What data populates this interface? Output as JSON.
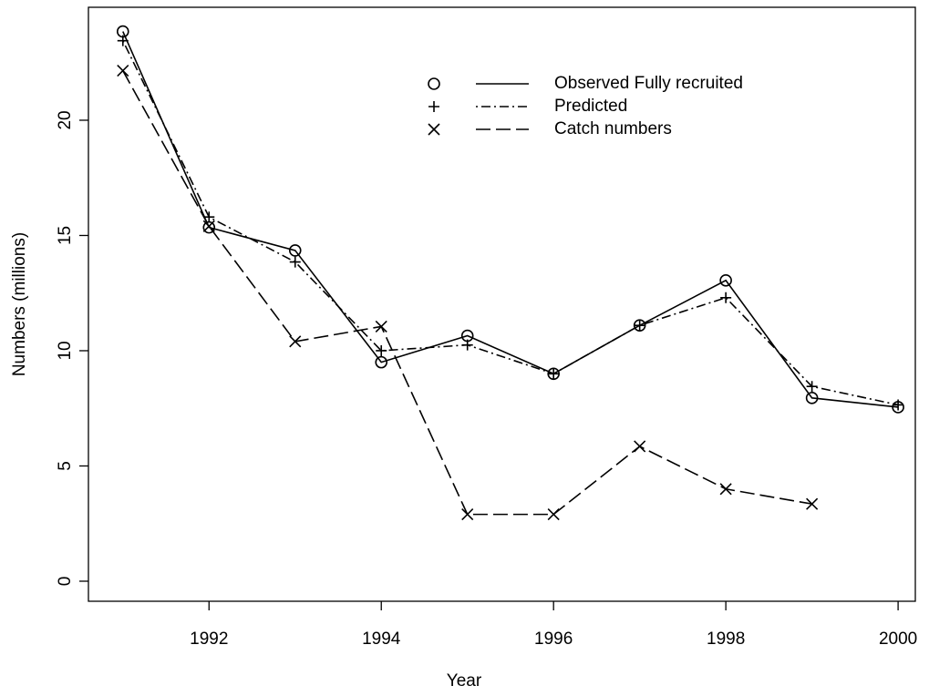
{
  "chart_data": {
    "type": "line",
    "x_label": "Year",
    "y_label": "Numbers (millions)",
    "x": [
      1991,
      1992,
      1993,
      1994,
      1995,
      1996,
      1997,
      1998,
      1999,
      2000
    ],
    "series": [
      {
        "name": "Observed Fully recruited",
        "color": "#000000",
        "marker": "circle",
        "dash": "solid",
        "values": [
          23.85,
          15.35,
          14.35,
          9.5,
          10.65,
          9.0,
          11.1,
          13.05,
          7.95,
          7.55
        ]
      },
      {
        "name": "Predicted",
        "color": "#000000",
        "marker": "plus",
        "dash": "dashdot",
        "values": [
          23.45,
          15.8,
          13.85,
          10.0,
          10.25,
          9.0,
          11.1,
          12.3,
          8.45,
          7.65
        ]
      },
      {
        "name": "Catch numbers",
        "color": "#000000",
        "marker": "x",
        "dash": "longdash",
        "values": [
          22.15,
          15.4,
          10.4,
          11.05,
          2.9,
          2.9,
          5.85,
          4.0,
          3.35,
          null
        ]
      }
    ],
    "xlim": [
      1990.6,
      2000.2
    ],
    "xticks": [
      1992,
      1994,
      1996,
      1998,
      2000
    ],
    "ylim": [
      -0.87,
      24.9
    ],
    "yticks": [
      0,
      5,
      10,
      15,
      20
    ],
    "grid": false,
    "legend": "top-right"
  }
}
